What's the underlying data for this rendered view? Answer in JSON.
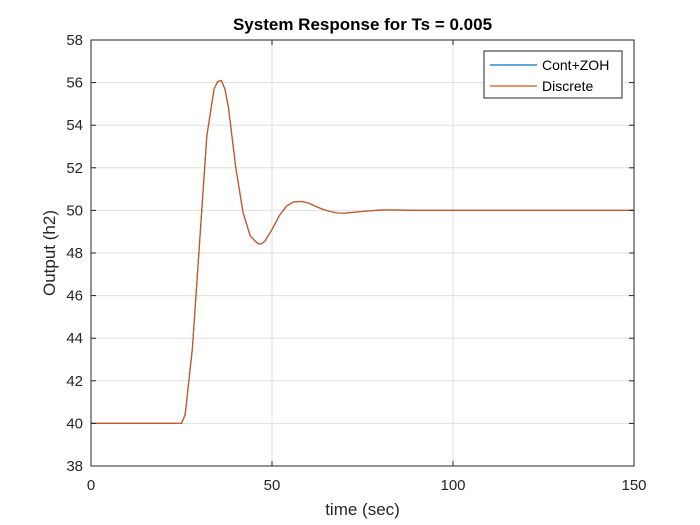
{
  "chart_data": {
    "type": "line",
    "title": "System Response for Ts = 0.005",
    "xlabel": "time (sec)",
    "ylabel": "Output (h2)",
    "xlim": [
      0,
      150
    ],
    "ylim": [
      38,
      58
    ],
    "xticks": [
      0,
      50,
      100,
      150
    ],
    "yticks": [
      38,
      40,
      42,
      44,
      46,
      48,
      50,
      52,
      54,
      56,
      58
    ],
    "grid": true,
    "legend_location": "top-right",
    "series": [
      {
        "name": "Cont+ZOH",
        "color": "#0072BD",
        "x": [
          0,
          25,
          26,
          28,
          30,
          32,
          34,
          35,
          36,
          37,
          38,
          40,
          42,
          44,
          46,
          47,
          48,
          50,
          52,
          54,
          56,
          58,
          60,
          62,
          64,
          66,
          68,
          70,
          72,
          75,
          80,
          85,
          90,
          100,
          110,
          120,
          130,
          140,
          150
        ],
        "y": [
          40,
          40,
          40.4,
          43.5,
          48.5,
          53.5,
          55.7,
          56.05,
          56.1,
          55.7,
          54.8,
          52.0,
          49.9,
          48.8,
          48.45,
          48.42,
          48.55,
          49.1,
          49.75,
          50.2,
          50.4,
          50.42,
          50.35,
          50.2,
          50.05,
          49.95,
          49.88,
          49.87,
          49.9,
          49.95,
          50.02,
          50.02,
          50.0,
          50.0,
          50.0,
          50.0,
          50.0,
          50.0,
          50.0
        ]
      },
      {
        "name": "Discrete",
        "color": "#D95319",
        "x": [
          0,
          25,
          26,
          28,
          30,
          32,
          34,
          35,
          36,
          37,
          38,
          40,
          42,
          44,
          46,
          47,
          48,
          50,
          52,
          54,
          56,
          58,
          60,
          62,
          64,
          66,
          68,
          70,
          72,
          75,
          80,
          85,
          90,
          100,
          110,
          120,
          130,
          140,
          150
        ],
        "y": [
          40,
          40,
          40.4,
          43.5,
          48.5,
          53.5,
          55.7,
          56.05,
          56.1,
          55.7,
          54.8,
          52.0,
          49.9,
          48.8,
          48.45,
          48.42,
          48.55,
          49.1,
          49.75,
          50.2,
          50.4,
          50.42,
          50.35,
          50.2,
          50.05,
          49.95,
          49.88,
          49.87,
          49.9,
          49.95,
          50.02,
          50.02,
          50.0,
          50.0,
          50.0,
          50.0,
          50.0,
          50.0,
          50.0
        ]
      }
    ]
  }
}
